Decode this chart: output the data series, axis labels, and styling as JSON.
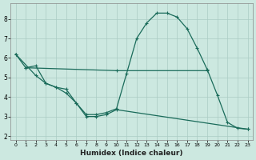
{
  "xlabel": "Humidex (Indice chaleur)",
  "xlim": [
    -0.5,
    23.5
  ],
  "ylim": [
    1.8,
    8.8
  ],
  "yticks": [
    2,
    3,
    4,
    5,
    6,
    7,
    8
  ],
  "xticks": [
    0,
    1,
    2,
    3,
    4,
    5,
    6,
    7,
    8,
    9,
    10,
    11,
    12,
    13,
    14,
    15,
    16,
    17,
    18,
    19,
    20,
    21,
    22,
    23
  ],
  "background_color": "#cce8e0",
  "grid_color": "#aaccC4",
  "line_color": "#1a6b5a",
  "line1_x": [
    0,
    1,
    2,
    3,
    4,
    5,
    6,
    7,
    8,
    9,
    10,
    11,
    12,
    13,
    14,
    15,
    16,
    17,
    18,
    19,
    20,
    21,
    22,
    23
  ],
  "line1_y": [
    6.2,
    5.5,
    5.6,
    4.7,
    4.5,
    4.4,
    3.7,
    3.1,
    3.1,
    3.2,
    3.4,
    5.2,
    7.0,
    7.8,
    8.3,
    8.3,
    8.1,
    7.5,
    6.5,
    5.4,
    4.1,
    2.7,
    2.4,
    2.35
  ],
  "line2_x": [
    1,
    10,
    19
  ],
  "line2_y": [
    5.5,
    5.35,
    5.35
  ],
  "line3_x": [
    0,
    2,
    3,
    4,
    5,
    6,
    7,
    8,
    9,
    10,
    23
  ],
  "line3_y": [
    6.2,
    5.1,
    4.7,
    4.5,
    4.2,
    3.7,
    3.0,
    3.0,
    3.1,
    3.35,
    2.35
  ],
  "marker_size": 2.5,
  "marker": "P",
  "linewidth": 0.9
}
